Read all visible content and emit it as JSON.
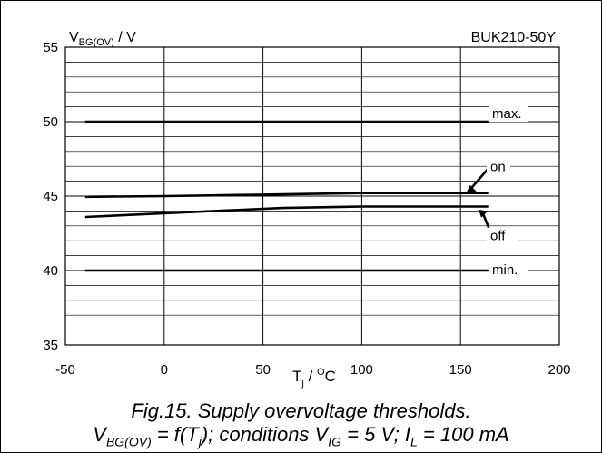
{
  "chart_data": {
    "type": "line",
    "title": "BUK210-50Y",
    "ylabel_main": "V",
    "ylabel_sub": "BG(OV)",
    "ylabel_tail": " / V",
    "xlabel_main": "T",
    "xlabel_sub": "j",
    "xlabel_mid": " / ",
    "xlabel_sup": "O",
    "xlabel_tail": "C",
    "xlim": [
      -50,
      200
    ],
    "ylim": [
      35,
      55
    ],
    "x_ticks": [
      "-50",
      "0",
      "50",
      "100",
      "150",
      "200"
    ],
    "y_ticks": [
      "35",
      "40",
      "45",
      "50",
      "55"
    ],
    "grid": true,
    "series": [
      {
        "name": "max.",
        "x": [
          -40,
          164
        ],
        "y": [
          50,
          50
        ]
      },
      {
        "name": "on",
        "x": [
          -40,
          0,
          50,
          100,
          164
        ],
        "y": [
          44.95,
          45.0,
          45.1,
          45.2,
          45.2
        ]
      },
      {
        "name": "off",
        "x": [
          -40,
          0,
          60,
          100,
          164
        ],
        "y": [
          43.6,
          43.85,
          44.2,
          44.3,
          44.3
        ]
      },
      {
        "name": "min.",
        "x": [
          -40,
          164
        ],
        "y": [
          40,
          40
        ]
      }
    ]
  },
  "caption": {
    "line1": "Fig.15.   Supply overvoltage thresholds.",
    "l2_a": "V",
    "l2_a_sub": "BG(OV)",
    "l2_b": " = f(T",
    "l2_b_sub": "j",
    "l2_c": "); conditions V",
    "l2_c_sub": "IG",
    "l2_d": " = 5 V; I",
    "l2_d_sub": "L",
    "l2_e": " = 100 mA"
  }
}
